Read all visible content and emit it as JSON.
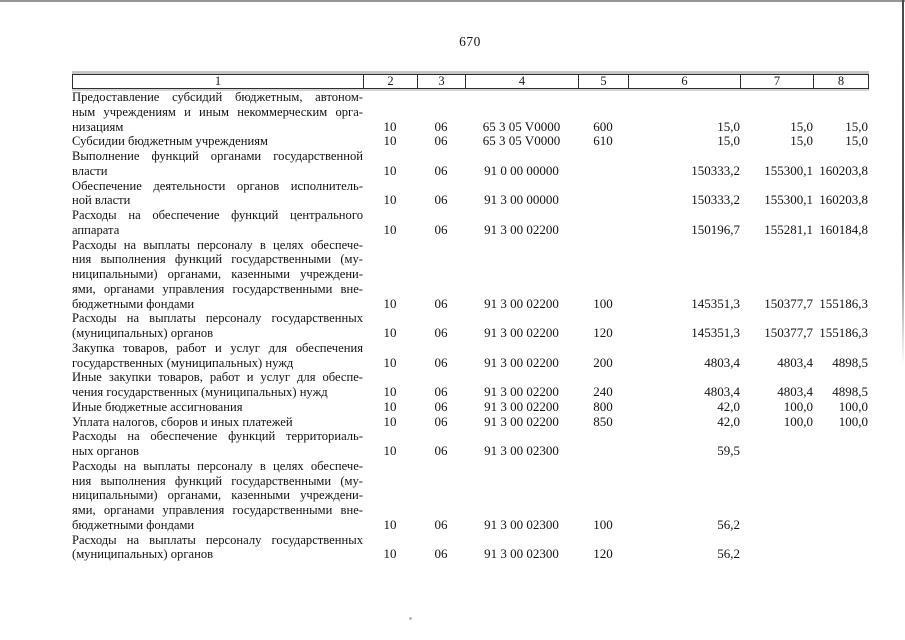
{
  "page": {
    "number": "670",
    "colors": {
      "ink": "#161616",
      "table_border": "#2e2e2e",
      "scan_edge_gray": "#969696"
    }
  },
  "table": {
    "header": [
      "1",
      "2",
      "3",
      "4",
      "5",
      "6",
      "7",
      "8"
    ],
    "rows": [
      {
        "label_lines": [
          "Предоставление субсидий бюджетным, автоном-",
          "ным учреждениям и иным некоммерческим орга-",
          "низациям"
        ],
        "c2": "10",
        "c3": "06",
        "c4": "65 3 05 V0000",
        "c5": "600",
        "c6": "15,0",
        "c7": "15,0",
        "c8": "15,0"
      },
      {
        "label_lines": [
          "Субсидии бюджетным учреждениям"
        ],
        "c2": "10",
        "c3": "06",
        "c4": "65 3 05 V0000",
        "c5": "610",
        "c6": "15,0",
        "c7": "15,0",
        "c8": "15,0"
      },
      {
        "label_lines": [
          "Выполнение функций органами государственной",
          "власти"
        ],
        "c2": "10",
        "c3": "06",
        "c4": "91 0 00 00000",
        "c5": "",
        "c6": "150333,2",
        "c7": "155300,1",
        "c8": "160203,8"
      },
      {
        "label_lines": [
          "Обеспечение деятельности органов исполнитель-",
          "ной власти"
        ],
        "c2": "10",
        "c3": "06",
        "c4": "91 3 00 00000",
        "c5": "",
        "c6": "150333,2",
        "c7": "155300,1",
        "c8": "160203,8"
      },
      {
        "label_lines": [
          "Расходы на обеспечение функций центрального",
          "аппарата"
        ],
        "c2": "10",
        "c3": "06",
        "c4": "91 3 00 02200",
        "c5": "",
        "c6": "150196,7",
        "c7": "155281,1",
        "c8": "160184,8"
      },
      {
        "label_lines": [
          "Расходы на выплаты персоналу в целях обеспече-",
          "ния выполнения функций государственными (му-",
          "ниципальными) органами, казенными учреждени-",
          "ями, органами управления государственными вне-",
          "бюджетными фондами"
        ],
        "c2": "10",
        "c3": "06",
        "c4": "91 3 00 02200",
        "c5": "100",
        "c6": "145351,3",
        "c7": "150377,7",
        "c8": "155186,3"
      },
      {
        "label_lines": [
          "Расходы на выплаты персоналу государственных",
          "(муниципальных) органов"
        ],
        "c2": "10",
        "c3": "06",
        "c4": "91 3 00 02200",
        "c5": "120",
        "c6": "145351,3",
        "c7": "150377,7",
        "c8": "155186,3"
      },
      {
        "label_lines": [
          "Закупка товаров, работ и услуг для обеспечения",
          "государственных (муниципальных) нужд"
        ],
        "c2": "10",
        "c3": "06",
        "c4": "91 3 00 02200",
        "c5": "200",
        "c6": "4803,4",
        "c7": "4803,4",
        "c8": "4898,5"
      },
      {
        "label_lines": [
          "Иные закупки товаров, работ и услуг для обеспе-",
          "чения государственных (муниципальных) нужд"
        ],
        "c2": "10",
        "c3": "06",
        "c4": "91 3 00 02200",
        "c5": "240",
        "c6": "4803,4",
        "c7": "4803,4",
        "c8": "4898,5"
      },
      {
        "label_lines": [
          "Иные бюджетные ассигнования"
        ],
        "c2": "10",
        "c3": "06",
        "c4": "91 3 00 02200",
        "c5": "800",
        "c6": "42,0",
        "c7": "100,0",
        "c8": "100,0"
      },
      {
        "label_lines": [
          "Уплата налогов, сборов и иных платежей"
        ],
        "c2": "10",
        "c3": "06",
        "c4": "91 3 00 02200",
        "c5": "850",
        "c6": "42,0",
        "c7": "100,0",
        "c8": "100,0"
      },
      {
        "label_lines": [
          "Расходы на обеспечение функций территориаль-",
          "ных органов"
        ],
        "c2": "10",
        "c3": "06",
        "c4": "91 3 00 02300",
        "c5": "",
        "c6": "59,5",
        "c7": "",
        "c8": ""
      },
      {
        "label_lines": [
          "Расходы на выплаты персоналу в целях обеспече-",
          "ния выполнения функций государственными (му-",
          "ниципальными) органами, казенными учреждени-",
          "ями, органами управления государственными вне-",
          "бюджетными фондами"
        ],
        "c2": "10",
        "c3": "06",
        "c4": "91 3 00 02300",
        "c5": "100",
        "c6": "56,2",
        "c7": "",
        "c8": ""
      },
      {
        "label_lines": [
          "Расходы на выплаты персоналу государственных",
          "(муниципальных) органов"
        ],
        "c2": "10",
        "c3": "06",
        "c4": "91 3 00 02300",
        "c5": "120",
        "c6": "56,2",
        "c7": "",
        "c8": ""
      }
    ]
  }
}
